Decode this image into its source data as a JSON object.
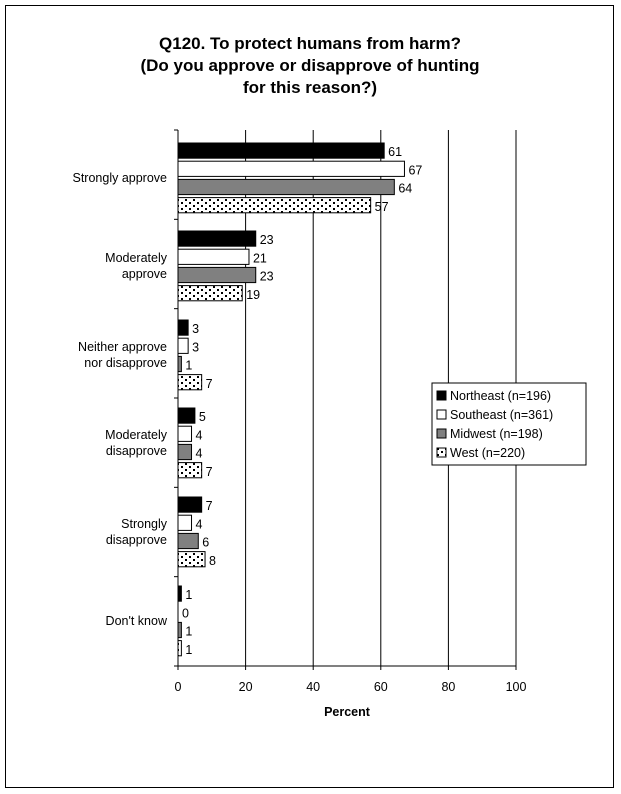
{
  "chart_data": {
    "type": "bar",
    "orientation": "horizontal",
    "title": [
      "Q120. To protect humans from harm?",
      "(Do you approve or disapprove of hunting",
      "for this reason?)"
    ],
    "xlabel": "Percent",
    "xlim": [
      0,
      100
    ],
    "xticks": [
      "0",
      "20",
      "40",
      "60",
      "80",
      "100"
    ],
    "grid": true,
    "legend_position": "right",
    "categories": [
      [
        "Strongly approve"
      ],
      [
        "Moderately",
        "approve"
      ],
      [
        "Neither approve",
        "nor disapprove"
      ],
      [
        "Moderately",
        "disapprove"
      ],
      [
        "Strongly",
        "disapprove"
      ],
      [
        "Don't know"
      ]
    ],
    "series": [
      {
        "name": "Northeast (n=196)",
        "fill": "#000000",
        "pattern": "solid",
        "values": [
          61,
          23,
          3,
          5,
          7,
          1
        ]
      },
      {
        "name": "Southeast (n=361)",
        "fill": "#ffffff",
        "pattern": "solid",
        "values": [
          67,
          21,
          3,
          4,
          4,
          0
        ]
      },
      {
        "name": "Midwest (n=198)",
        "fill": "#808080",
        "pattern": "solid",
        "values": [
          64,
          23,
          1,
          4,
          6,
          1
        ]
      },
      {
        "name": "West (n=220)",
        "fill": "#ffffff",
        "pattern": "dots",
        "values": [
          57,
          19,
          7,
          7,
          8,
          1
        ]
      }
    ]
  }
}
